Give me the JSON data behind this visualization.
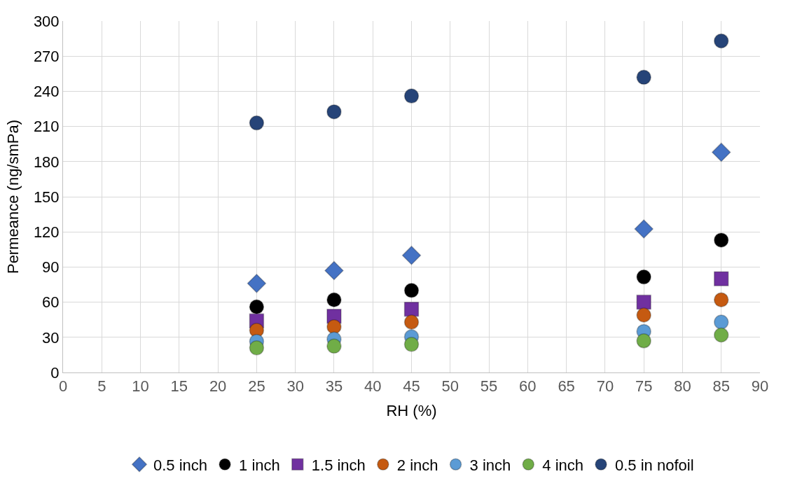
{
  "chart_data": {
    "type": "scatter",
    "xlabel": "RH (%)",
    "ylabel": "Permeance (ng/smPa)",
    "x": [
      25,
      35,
      45,
      75,
      85
    ],
    "xlim": [
      0,
      90
    ],
    "xticks": [
      0,
      5,
      10,
      15,
      20,
      25,
      30,
      35,
      40,
      45,
      50,
      55,
      60,
      65,
      70,
      75,
      80,
      85,
      90
    ],
    "ylim": [
      0,
      300
    ],
    "yticks": [
      0,
      30,
      60,
      90,
      120,
      150,
      180,
      210,
      240,
      270,
      300
    ],
    "grid": true,
    "legend": "bottom",
    "series": [
      {
        "name": "0.5 inch",
        "color": "#4472c4",
        "marker": "diamond",
        "values": [
          76,
          87,
          100,
          122.5,
          188
        ]
      },
      {
        "name": "1 inch",
        "color": "#000000",
        "marker": "circle",
        "values": [
          56,
          62,
          70,
          81.5,
          113
        ]
      },
      {
        "name": "1.5 inch",
        "color": "#7030a0",
        "marker": "square",
        "values": [
          44,
          48,
          54,
          60,
          80
        ]
      },
      {
        "name": "2 inch",
        "color": "#c55a11",
        "marker": "circle",
        "values": [
          36,
          39,
          43,
          49,
          62
        ]
      },
      {
        "name": "3 inch",
        "color": "#5b9bd5",
        "marker": "circle",
        "values": [
          26.5,
          28.5,
          30.5,
          35,
          43
        ]
      },
      {
        "name": "4 inch",
        "color": "#70ad47",
        "marker": "circle",
        "values": [
          21,
          22.5,
          24,
          27,
          32
        ]
      },
      {
        "name": "0.5 in nofoil",
        "color": "#264478",
        "marker": "circle",
        "values": [
          213,
          222.5,
          236,
          252,
          283
        ]
      }
    ]
  }
}
